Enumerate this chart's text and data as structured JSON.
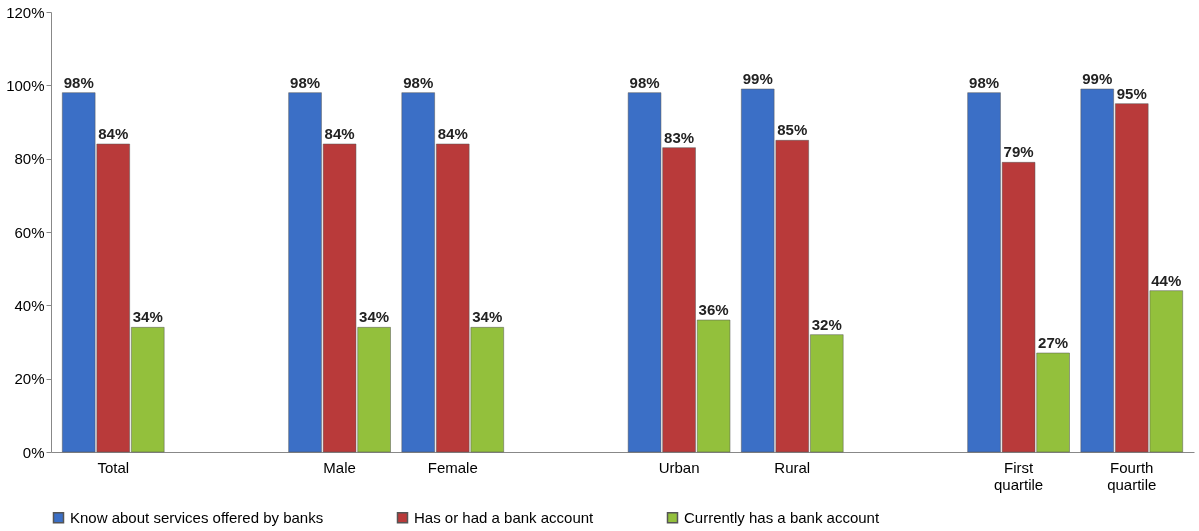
{
  "chart_data": {
    "type": "bar",
    "categories": [
      "Total",
      null,
      "Male",
      "Female",
      null,
      "Urban",
      "Rural",
      null,
      "First quartile",
      "Fourth quartile"
    ],
    "series": [
      {
        "name": "Know about services offered by banks",
        "color": "#3b6fc6",
        "values": [
          98,
          null,
          98,
          98,
          null,
          98,
          99,
          null,
          98,
          99
        ],
        "value_labels": [
          "98%",
          null,
          "98%",
          "98%",
          null,
          "98%",
          "99%",
          null,
          "98%",
          "99%"
        ]
      },
      {
        "name": "Has or had a bank account",
        "color": "#b93a3a",
        "values": [
          84,
          null,
          84,
          84,
          null,
          83,
          85,
          null,
          79,
          95
        ],
        "value_labels": [
          "84%",
          null,
          "84%",
          "84%",
          null,
          "83%",
          "85%",
          null,
          "79%",
          "95%"
        ]
      },
      {
        "name": "Currently has a bank account",
        "color": "#93c03c",
        "values": [
          34,
          null,
          34,
          34,
          null,
          36,
          32,
          null,
          27,
          44
        ],
        "value_labels": [
          "34%",
          null,
          "34%",
          "34%",
          null,
          "36%",
          "32%",
          null,
          "27%",
          "44%"
        ]
      }
    ],
    "ylim": [
      0,
      120
    ],
    "yticks": [
      {
        "value": 0,
        "label": "0%"
      },
      {
        "value": 20,
        "label": "20%"
      },
      {
        "value": 40,
        "label": "40%"
      },
      {
        "value": 60,
        "label": "60%"
      },
      {
        "value": 80,
        "label": "80%"
      },
      {
        "value": 100,
        "label": "100%"
      },
      {
        "value": 120,
        "label": "120%"
      }
    ],
    "legend": "bottom",
    "grid": false
  }
}
